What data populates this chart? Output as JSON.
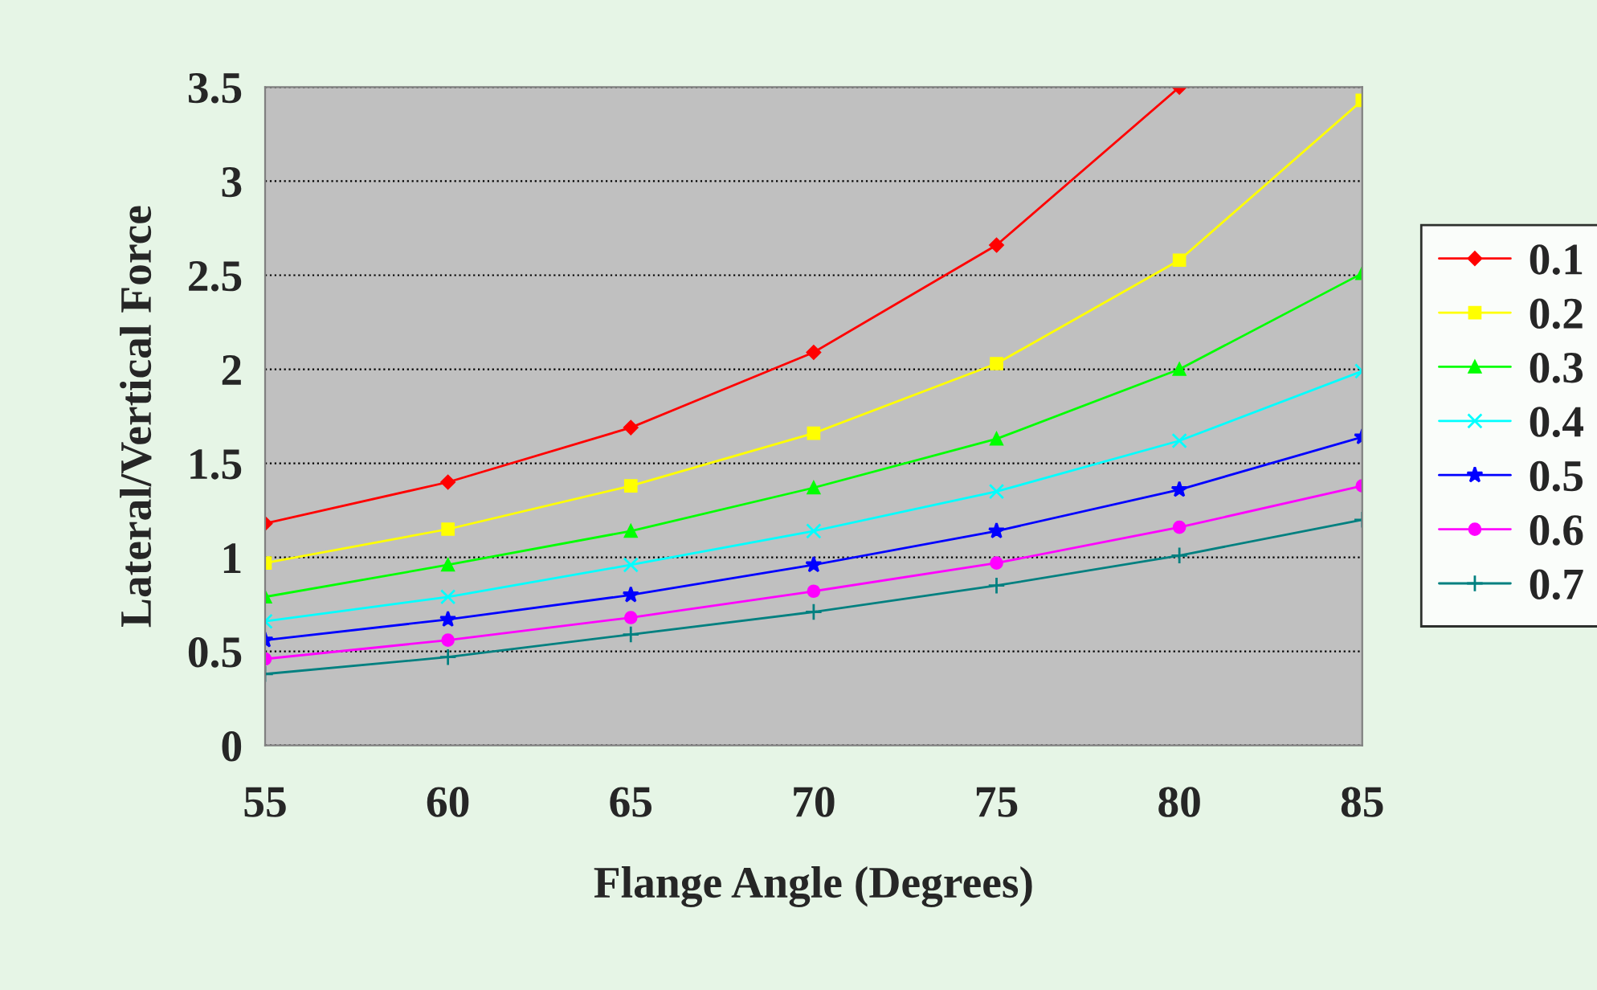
{
  "chart_data": {
    "type": "line",
    "xlabel": "Flange Angle (Degrees)",
    "ylabel": "Lateral/Vertical Force",
    "x": [
      55,
      60,
      65,
      70,
      75,
      80,
      85
    ],
    "xlim": [
      55,
      85
    ],
    "xticks": [
      55,
      60,
      65,
      70,
      75,
      80,
      85
    ],
    "ylim": [
      0,
      3.5
    ],
    "yticks": [
      0,
      0.5,
      1,
      1.5,
      2,
      2.5,
      3,
      3.5
    ],
    "grid": "y",
    "legend": "right",
    "line_style": "solid",
    "series": [
      {
        "name": "0.1",
        "color": "#ff0000",
        "marker": "diamond",
        "values": [
          1.18,
          1.4,
          1.69,
          2.09,
          2.66,
          3.5,
          null
        ]
      },
      {
        "name": "0.2",
        "color": "#ffff00",
        "marker": "square",
        "values": [
          0.97,
          1.15,
          1.38,
          1.66,
          2.03,
          2.58,
          3.43
        ]
      },
      {
        "name": "0.3",
        "color": "#00ff00",
        "marker": "triangle",
        "values": [
          0.79,
          0.96,
          1.14,
          1.37,
          1.63,
          2.0,
          2.51
        ]
      },
      {
        "name": "0.4",
        "color": "#00ffff",
        "marker": "cross",
        "values": [
          0.66,
          0.79,
          0.96,
          1.14,
          1.35,
          1.62,
          1.99
        ]
      },
      {
        "name": "0.5",
        "color": "#0000ff",
        "marker": "star",
        "values": [
          0.56,
          0.67,
          0.8,
          0.96,
          1.14,
          1.36,
          1.64
        ]
      },
      {
        "name": "0.6",
        "color": "#ff00ff",
        "marker": "circle",
        "values": [
          0.46,
          0.56,
          0.68,
          0.82,
          0.97,
          1.16,
          1.38
        ]
      },
      {
        "name": "0.7",
        "color": "#008080",
        "marker": "plus",
        "values": [
          0.38,
          0.47,
          0.59,
          0.71,
          0.85,
          1.01,
          1.2
        ]
      }
    ]
  }
}
